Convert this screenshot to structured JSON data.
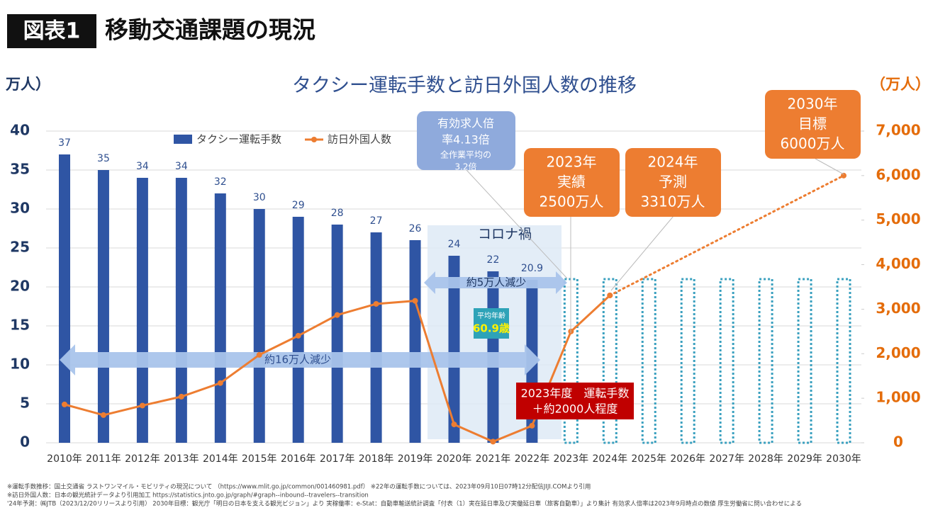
{
  "header": {
    "tag": "図表1",
    "title": "移動交通課題の現況"
  },
  "chart_data": {
    "type": "bar-line",
    "title": "タクシー運転手数と訪日外国人数の推移",
    "y_label": "万人）",
    "y2_label": "（万人）",
    "categories": [
      "2010年",
      "2011年",
      "2012年",
      "2013年",
      "2014年",
      "2015年",
      "2016年",
      "2017年",
      "2018年",
      "2019年",
      "2020年",
      "2021年",
      "2022年",
      "2023年",
      "2024年",
      "2025年",
      "2026年",
      "2027年",
      "2028年",
      "2029年",
      "2030年"
    ],
    "ylim": [
      0,
      40
    ],
    "yticks": [
      0,
      5,
      10,
      15,
      20,
      25,
      30,
      35,
      40
    ],
    "y2lim": [
      0,
      7000
    ],
    "y2ticks": [
      0,
      {
        "value": 1000,
        "label": "1,000"
      },
      {
        "value": 2000,
        "label": "2,000"
      },
      {
        "value": 3000,
        "label": "3,000"
      },
      {
        "value": 4000,
        "label": "4,000"
      },
      {
        "value": 5000,
        "label": "5,000"
      },
      {
        "value": 6000,
        "label": "6,000"
      },
      {
        "value": 7000,
        "label": "7,000"
      }
    ],
    "grid": true,
    "series": [
      {
        "name": "タクシー運転手数",
        "type": "bar",
        "color": "#2f55a4",
        "data_labels": true,
        "values": [
          37,
          35,
          34,
          34,
          32,
          30,
          29,
          28,
          27,
          26,
          24,
          22,
          20.9,
          null,
          null,
          null,
          null,
          null,
          null,
          null,
          null
        ]
      },
      {
        "type": "bar",
        "style": "dotted",
        "color": "#3aa0bf",
        "values": [
          null,
          null,
          null,
          null,
          null,
          null,
          null,
          null,
          null,
          null,
          null,
          null,
          null,
          21,
          21,
          21,
          21,
          21,
          21,
          21,
          21
        ]
      },
      {
        "name": "訪日外国人数",
        "type": "line",
        "axis": "y2",
        "color": "#ed7d31",
        "values": [
          861,
          622,
          836,
          1036,
          1341,
          1974,
          2404,
          2869,
          3119,
          3188,
          412,
          25,
          383,
          2500,
          3310,
          null,
          null,
          null,
          null,
          null,
          null
        ]
      },
      {
        "type": "line",
        "axis": "y2",
        "color": "#ed7d31",
        "style": "dotted",
        "connect_gaps": true,
        "values": [
          null,
          null,
          null,
          null,
          null,
          null,
          null,
          null,
          null,
          null,
          null,
          null,
          null,
          null,
          3310,
          null,
          null,
          null,
          null,
          null,
          6000
        ]
      }
    ],
    "annotations": [
      [
        "コロナ禍"
      ],
      [
        "約5万人減少"
      ],
      [
        "平均年齢",
        "60.9歳"
      ],
      [
        "約16万人減少"
      ],
      [
        "2023年度　運転手数",
        "＋約2000人程度"
      ],
      [
        "有効求人倍",
        "率4.13倍",
        "全作業平均の",
        "3.2倍"
      ],
      [
        "2023年",
        "実績",
        "2500万人"
      ],
      [
        "2024年",
        "予測",
        "3310万人"
      ],
      [
        "2030年",
        "目標",
        "6000万人"
      ]
    ]
  },
  "footnotes": [
    "※運転手数推移：国土交通省 ラストワンマイル・モビリティの現況について （https://www.mlit.go.jp/common/001460981.pdf） ※22年の運転手数については、2023年09月10日07時12分配信JIJI.COMより引用",
    "※訪日外国人数：日本の観光統計データより引用加工 https://statistics.jnto.go.jp/graph/#graph--inbound--travelers--transition",
    "'24年予測：㈱JTB（2023/12/20リリースより引用） 2030年目標：観光庁「明日の日本を支える観光ビジョン」より 実稼働率：e-Stat：自動車輸送統計調査「付表（1）実在延日車及び実働延日車（旅客自動車）」より集計 有効求人倍率は2023年9月時点の数値 厚生労働省に問い合わせによる"
  ]
}
